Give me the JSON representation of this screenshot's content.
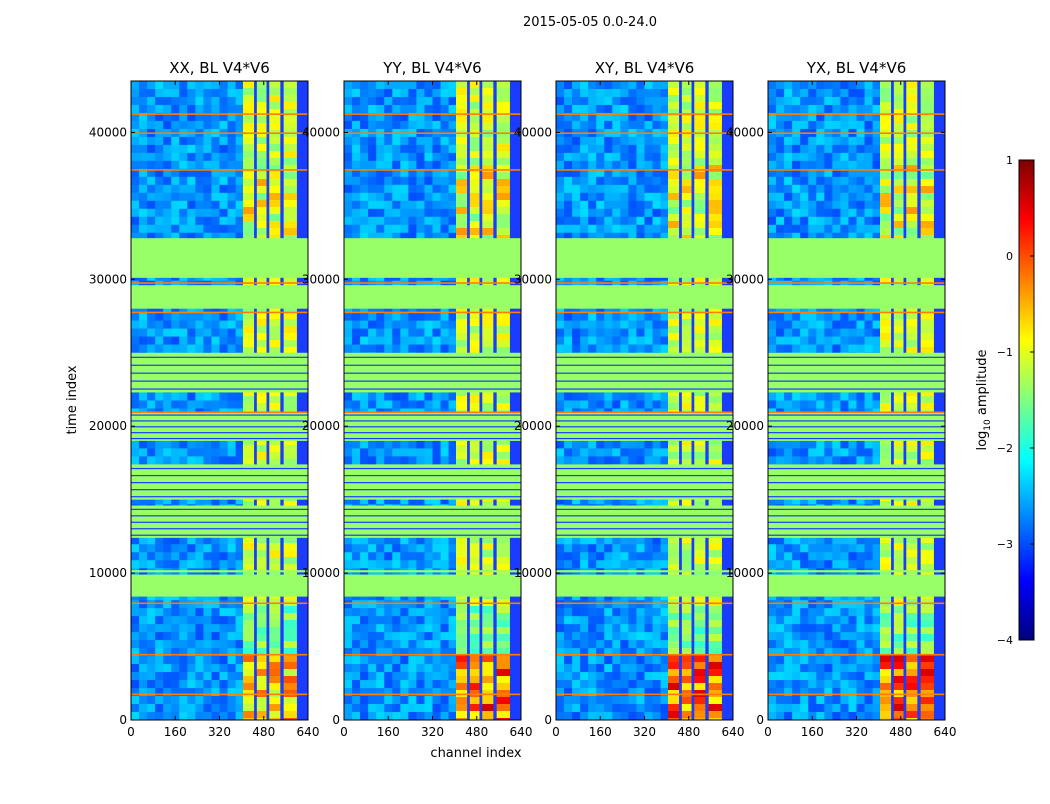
{
  "figure_title": "2015-05-05 0.0-24.0",
  "colormap": [
    "#00007f",
    "#0000ff",
    "#007fff",
    "#00ffff",
    "#7fff7f",
    "#ffff00",
    "#ff7f00",
    "#ff0000",
    "#7f0000"
  ],
  "flag_color": "#99ff66",
  "chart_data": [
    {
      "type": "heatmap",
      "title": "XX, BL V4*V6",
      "xlabel": "channel index",
      "ylabel": "time index",
      "xlim": [
        0,
        640
      ],
      "ylim": [
        0,
        43500
      ],
      "xticks": [
        0,
        160,
        320,
        480,
        640
      ],
      "yticks": [
        0,
        10000,
        20000,
        30000,
        40000
      ],
      "bright_columns": [
        [
          405,
          445
        ],
        [
          455,
          490
        ],
        [
          500,
          540
        ],
        [
          552,
          600
        ]
      ],
      "flagged_time_ranges": [
        [
          8400,
          9900
        ],
        [
          10050,
          10200
        ],
        [
          12400,
          14600
        ],
        [
          15000,
          17400
        ],
        [
          19000,
          21000
        ],
        [
          22300,
          25000
        ],
        [
          28000,
          29600
        ],
        [
          30100,
          32800
        ]
      ],
      "rfi_rows": [
        1800,
        4500,
        8000,
        21000,
        27800,
        29800,
        37500,
        40000,
        41300
      ]
    },
    {
      "type": "heatmap",
      "title": "YY, BL V4*V6",
      "xlabel": "channel index",
      "ylabel": "",
      "xlim": [
        0,
        640
      ],
      "ylim": [
        0,
        43500
      ],
      "xticks": [
        0,
        160,
        320,
        480,
        640
      ],
      "yticks": [
        0,
        10000,
        20000,
        30000,
        40000
      ],
      "bright_columns": [
        [
          405,
          445
        ],
        [
          455,
          490
        ],
        [
          500,
          540
        ],
        [
          552,
          600
        ]
      ],
      "flagged_time_ranges": [
        [
          8400,
          9900
        ],
        [
          10050,
          10200
        ],
        [
          12400,
          14600
        ],
        [
          15000,
          17400
        ],
        [
          19000,
          21000
        ],
        [
          22300,
          25000
        ],
        [
          28000,
          29600
        ],
        [
          30100,
          32800
        ]
      ],
      "rfi_rows": [
        1800,
        4500,
        8000,
        21000,
        27800,
        29800,
        37500,
        40000,
        41300
      ]
    },
    {
      "type": "heatmap",
      "title": "XY, BL V4*V6",
      "xlabel": "",
      "ylabel": "",
      "xlim": [
        0,
        640
      ],
      "ylim": [
        0,
        43500
      ],
      "xticks": [
        0,
        160,
        320,
        480,
        640
      ],
      "yticks": [
        0,
        10000,
        20000,
        30000,
        40000
      ],
      "bright_columns": [
        [
          405,
          445
        ],
        [
          455,
          490
        ],
        [
          500,
          540
        ],
        [
          552,
          600
        ]
      ],
      "flagged_time_ranges": [
        [
          8400,
          9900
        ],
        [
          10050,
          10200
        ],
        [
          12400,
          14600
        ],
        [
          15000,
          17400
        ],
        [
          19000,
          21000
        ],
        [
          22300,
          25000
        ],
        [
          28000,
          29600
        ],
        [
          30100,
          32800
        ]
      ],
      "rfi_rows": [
        1800,
        4500,
        8000,
        21000,
        27800,
        29800,
        37500,
        40000,
        41300
      ]
    },
    {
      "type": "heatmap",
      "title": "YX, BL V4*V6",
      "xlabel": "",
      "ylabel": "",
      "xlim": [
        0,
        640
      ],
      "ylim": [
        0,
        43500
      ],
      "xticks": [
        0,
        160,
        320,
        480,
        640
      ],
      "yticks": [
        0,
        10000,
        20000,
        30000,
        40000
      ],
      "bright_columns": [
        [
          405,
          445
        ],
        [
          455,
          490
        ],
        [
          500,
          540
        ],
        [
          552,
          600
        ]
      ],
      "flagged_time_ranges": [
        [
          8400,
          9900
        ],
        [
          10050,
          10200
        ],
        [
          12400,
          14600
        ],
        [
          15000,
          17400
        ],
        [
          19000,
          21000
        ],
        [
          22300,
          25000
        ],
        [
          28000,
          29600
        ],
        [
          30100,
          32800
        ]
      ],
      "rfi_rows": [
        1800,
        4500,
        8000,
        21000,
        27800,
        29800,
        37500,
        40000,
        41300
      ]
    }
  ],
  "colorbar": {
    "label": "log",
    "label_subscript": "10",
    "label_suffix": " amplitude",
    "range": [
      -4,
      1
    ],
    "ticks": [
      "1",
      "0",
      "−1",
      "−2",
      "−3",
      "−4"
    ]
  }
}
